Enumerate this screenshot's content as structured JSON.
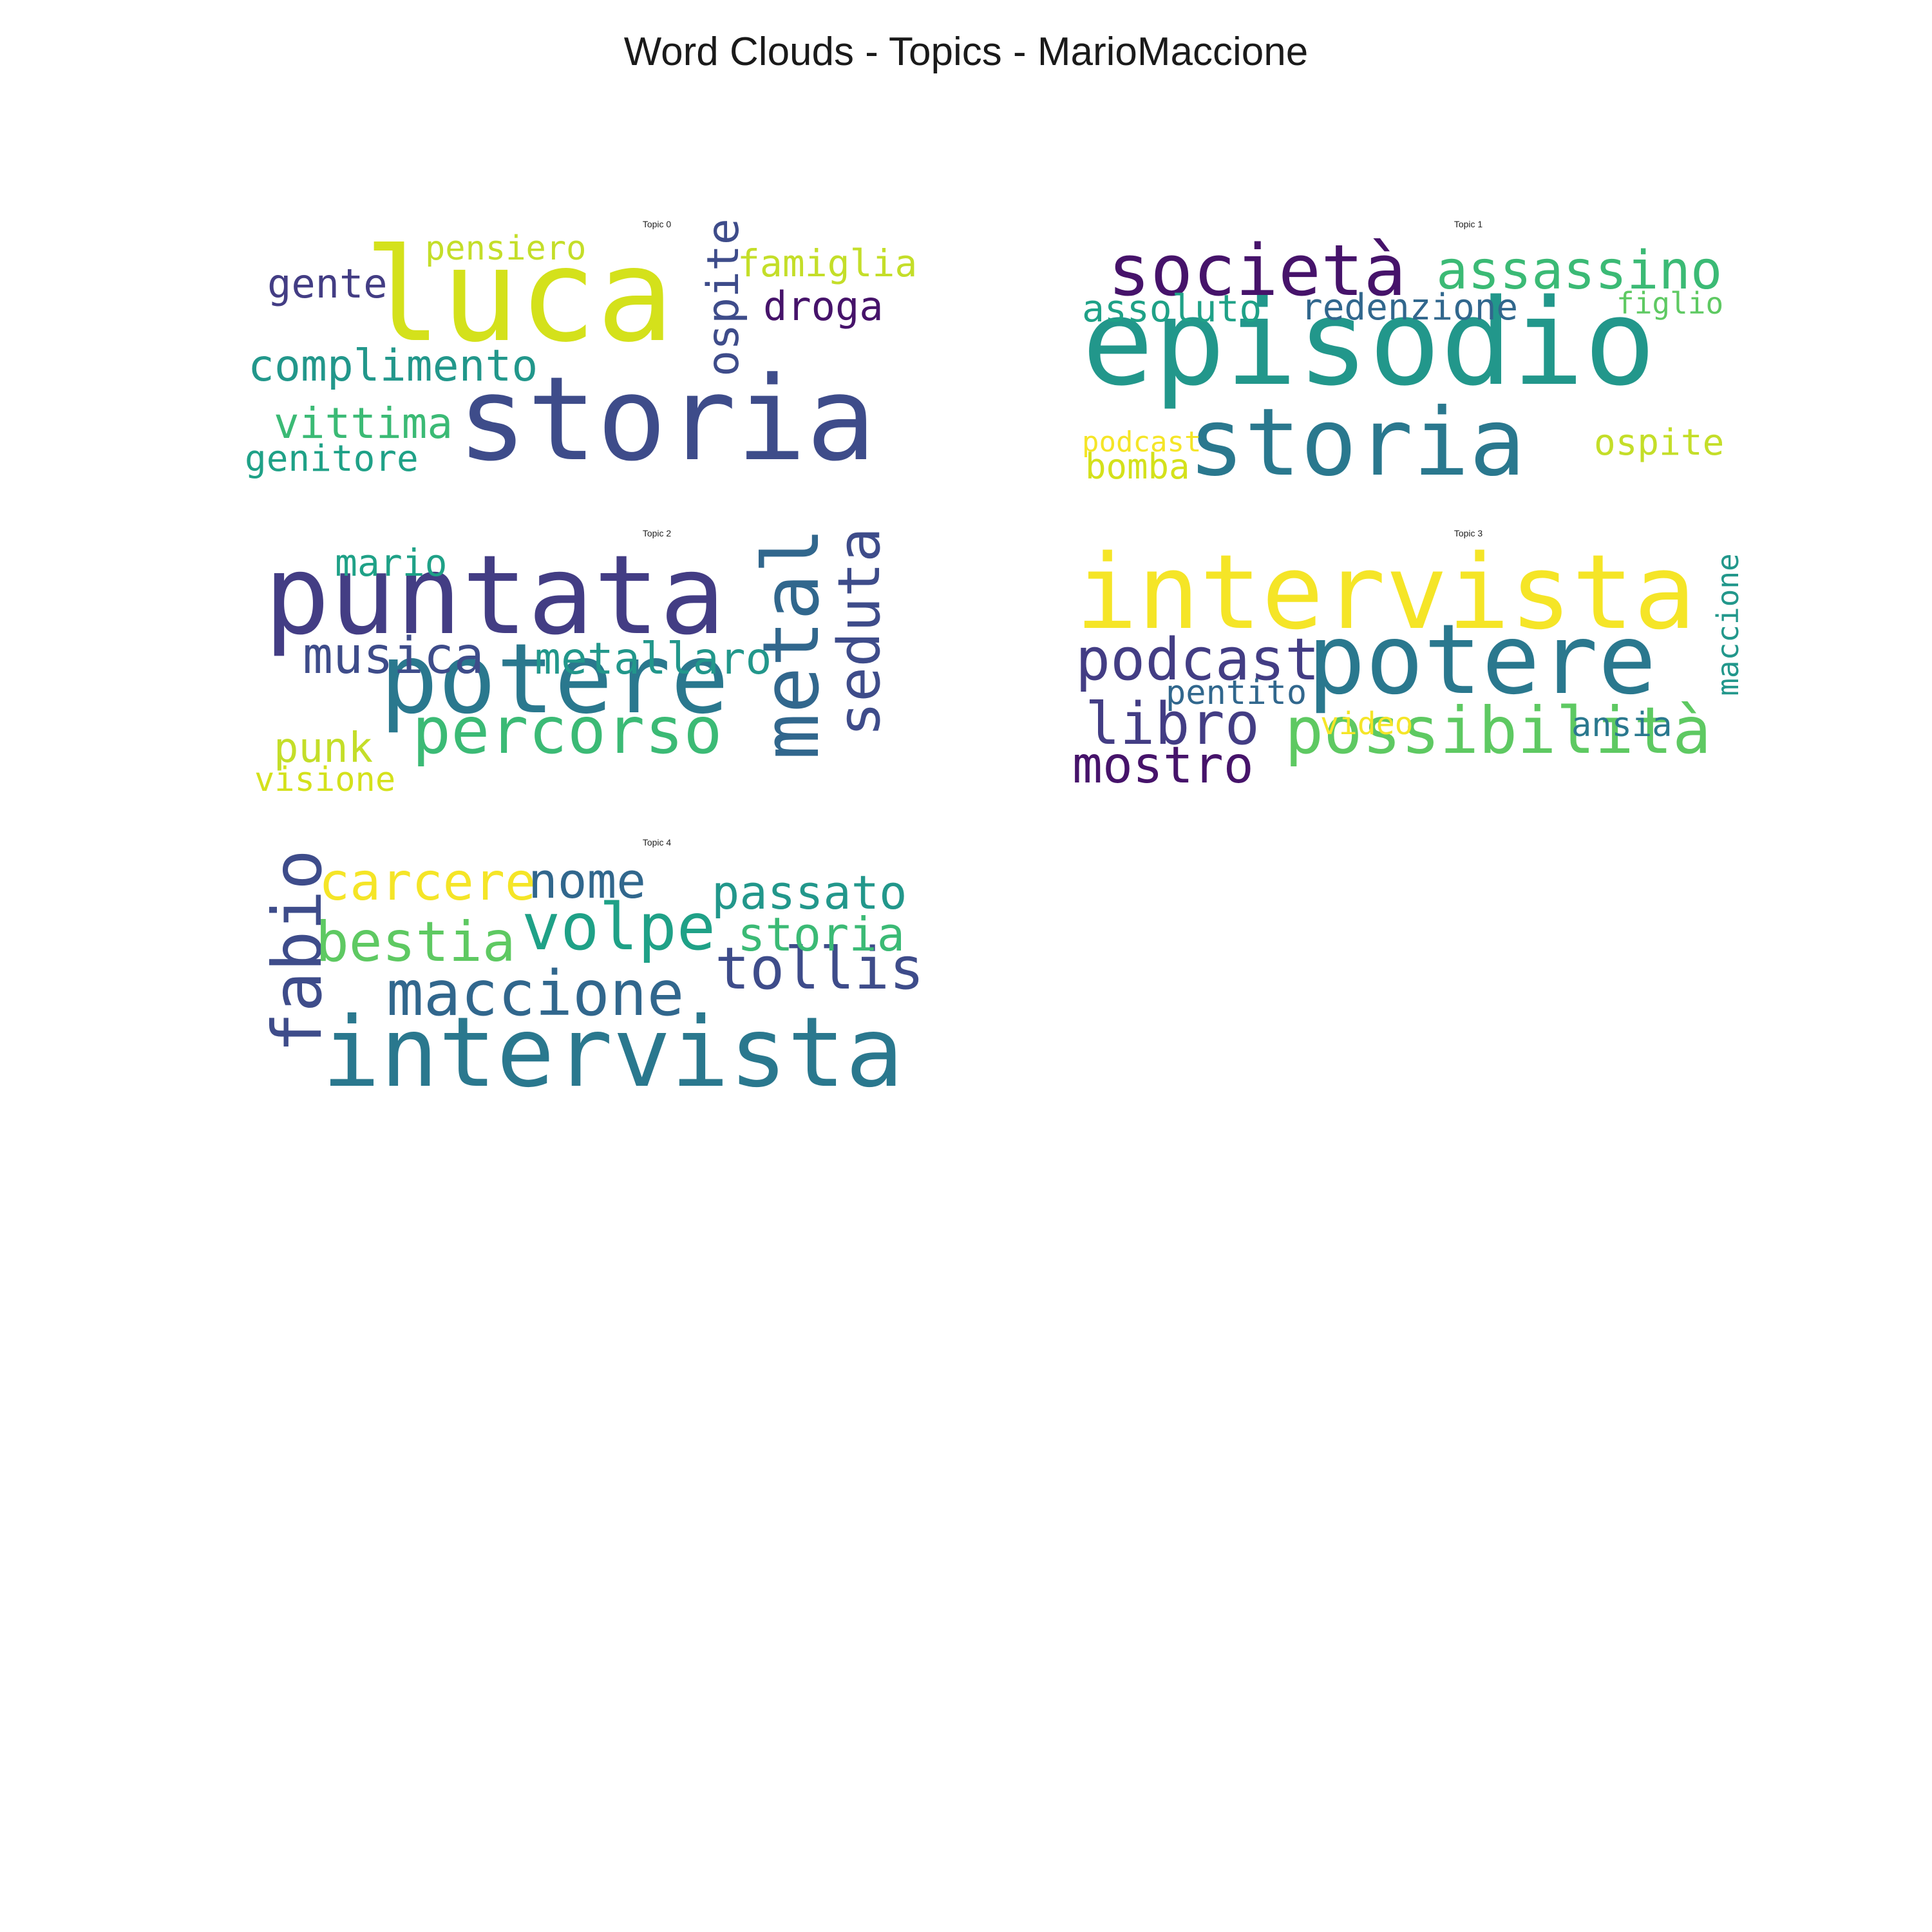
{
  "figure": {
    "title": "Word Clouds - Topics - MarioMaccione"
  },
  "colors": {
    "viridis": {
      "dark_purple": "#46136a",
      "purple": "#433d84",
      "indigo": "#3e4c8a",
      "blue": "#31678d",
      "teal_blue": "#2a788e",
      "teal": "#22978b",
      "green_teal": "#1fa187",
      "green": "#3bba75",
      "light_green": "#5ec962",
      "yellow_green": "#c4de29",
      "lime": "#d4e11b",
      "yellow": "#f5e527"
    }
  },
  "topics": [
    {
      "title": "Topic 0",
      "words": [
        {
          "text": "storia",
          "color": "#3e4c8a",
          "rotated": false
        },
        {
          "text": "luca",
          "color": "#d4e11b",
          "rotated": false
        },
        {
          "text": "complimento",
          "color": "#22978b",
          "rotated": false
        },
        {
          "text": "ospite",
          "color": "#3e4c8a",
          "rotated": true
        },
        {
          "text": "gente",
          "color": "#433d84",
          "rotated": false
        },
        {
          "text": "pensiero",
          "color": "#c4de29",
          "rotated": false
        },
        {
          "text": "famiglia",
          "color": "#c4de29",
          "rotated": false
        },
        {
          "text": "droga",
          "color": "#46136a",
          "rotated": false
        },
        {
          "text": "vittima",
          "color": "#3bba75",
          "rotated": false
        },
        {
          "text": "genitore",
          "color": "#1fa187",
          "rotated": false
        }
      ]
    },
    {
      "title": "Topic 1",
      "words": [
        {
          "text": "episodio",
          "color": "#22978b",
          "rotated": false
        },
        {
          "text": "storia",
          "color": "#2a788e",
          "rotated": false
        },
        {
          "text": "società",
          "color": "#46136a",
          "rotated": false
        },
        {
          "text": "assassino",
          "color": "#3bba75",
          "rotated": false
        },
        {
          "text": "assoluto",
          "color": "#1fa187",
          "rotated": false
        },
        {
          "text": "redenzione",
          "color": "#31678d",
          "rotated": false
        },
        {
          "text": "figlio",
          "color": "#5ec962",
          "rotated": false
        },
        {
          "text": "ospite",
          "color": "#c4de29",
          "rotated": false
        },
        {
          "text": "podcast",
          "color": "#f5e527",
          "rotated": false
        },
        {
          "text": "bomba",
          "color": "#d4e11b",
          "rotated": false
        }
      ]
    },
    {
      "title": "Topic 2",
      "words": [
        {
          "text": "puntata",
          "color": "#433d84",
          "rotated": false
        },
        {
          "text": "potere",
          "color": "#2a788e",
          "rotated": false
        },
        {
          "text": "metal",
          "color": "#31678d",
          "rotated": true
        },
        {
          "text": "seduta",
          "color": "#3e4c8a",
          "rotated": true
        },
        {
          "text": "percorso",
          "color": "#3bba75",
          "rotated": false
        },
        {
          "text": "musica",
          "color": "#3e4c8a",
          "rotated": false
        },
        {
          "text": "metallaro",
          "color": "#22978b",
          "rotated": false
        },
        {
          "text": "mario",
          "color": "#1fa187",
          "rotated": false
        },
        {
          "text": "punk",
          "color": "#c4de29",
          "rotated": false
        },
        {
          "text": "visione",
          "color": "#d4e11b",
          "rotated": false
        }
      ]
    },
    {
      "title": "Topic 3",
      "words": [
        {
          "text": "intervista",
          "color": "#f5e527",
          "rotated": false
        },
        {
          "text": "potere",
          "color": "#2a788e",
          "rotated": false
        },
        {
          "text": "possibilità",
          "color": "#5ec962",
          "rotated": false
        },
        {
          "text": "podcast",
          "color": "#433d84",
          "rotated": false
        },
        {
          "text": "libro",
          "color": "#433d84",
          "rotated": false
        },
        {
          "text": "mostro",
          "color": "#46136a",
          "rotated": false
        },
        {
          "text": "pentito",
          "color": "#31678d",
          "rotated": false
        },
        {
          "text": "video",
          "color": "#f5e527",
          "rotated": false
        },
        {
          "text": "ansia",
          "color": "#2a788e",
          "rotated": false
        },
        {
          "text": "maccione",
          "color": "#22978b",
          "rotated": true
        }
      ]
    },
    {
      "title": "Topic 4",
      "words": [
        {
          "text": "intervista",
          "color": "#2a788e",
          "rotated": false
        },
        {
          "text": "fabio",
          "color": "#3e4c8a",
          "rotated": true
        },
        {
          "text": "maccione",
          "color": "#31678d",
          "rotated": false
        },
        {
          "text": "volpe",
          "color": "#1fa187",
          "rotated": false
        },
        {
          "text": "tollis",
          "color": "#3e4c8a",
          "rotated": false
        },
        {
          "text": "bestia",
          "color": "#5ec962",
          "rotated": false
        },
        {
          "text": "carcere",
          "color": "#f5e527",
          "rotated": false
        },
        {
          "text": "nome",
          "color": "#31678d",
          "rotated": false
        },
        {
          "text": "passato",
          "color": "#22978b",
          "rotated": false
        },
        {
          "text": "storia",
          "color": "#3bba75",
          "rotated": false
        }
      ]
    }
  ]
}
